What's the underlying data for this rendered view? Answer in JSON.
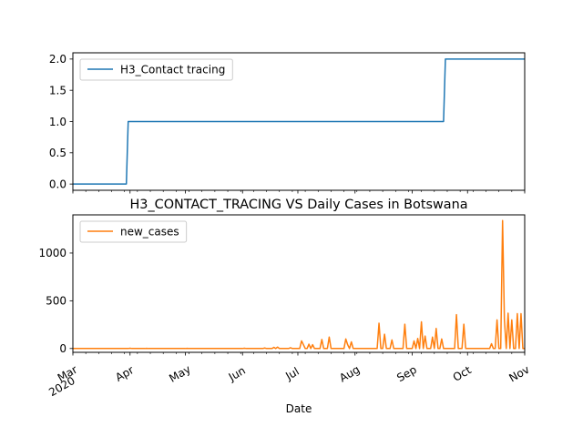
{
  "chart_data": [
    {
      "type": "line",
      "title": "",
      "xlabel": "",
      "ylabel": "",
      "ylim": [
        -0.1,
        2.1
      ],
      "yticks": [
        "0.0",
        "0.5",
        "1.0",
        "1.5",
        "2.0"
      ],
      "ytick_values": [
        0,
        0.5,
        1.0,
        1.5,
        2.0
      ],
      "legend_position": "upper-left",
      "series": [
        {
          "name": "H3_Contact tracing",
          "color": "#1f77b4",
          "points": [
            [
              "2020-03-01",
              0
            ],
            [
              "2020-03-30",
              0
            ],
            [
              "2020-03-31",
              1
            ],
            [
              "2020-09-18",
              1
            ],
            [
              "2020-09-19",
              2
            ],
            [
              "2020-11-01",
              2
            ]
          ]
        }
      ]
    },
    {
      "type": "line",
      "title": "H3_CONTACT_TRACING VS Daily Cases in Botswana",
      "xlabel": "Date",
      "ylabel": "",
      "ylim": [
        -40,
        1400
      ],
      "yticks": [
        "0",
        "500",
        "1000"
      ],
      "ytick_values": [
        0,
        500,
        1000
      ],
      "xticks": [
        {
          "date": "2020-03-01",
          "label": "Mar",
          "sub": "2020"
        },
        {
          "date": "2020-04-01",
          "label": "Apr",
          "sub": ""
        },
        {
          "date": "2020-05-01",
          "label": "May",
          "sub": ""
        },
        {
          "date": "2020-06-01",
          "label": "Jun",
          "sub": ""
        },
        {
          "date": "2020-07-01",
          "label": "Jul",
          "sub": ""
        },
        {
          "date": "2020-08-01",
          "label": "Aug",
          "sub": ""
        },
        {
          "date": "2020-09-01",
          "label": "Sep",
          "sub": ""
        },
        {
          "date": "2020-10-01",
          "label": "Oct",
          "sub": ""
        },
        {
          "date": "2020-11-01",
          "label": "Nov",
          "sub": ""
        }
      ],
      "legend_position": "upper-left",
      "series": [
        {
          "name": "new_cases",
          "color": "#ff7f0e",
          "points": [
            [
              "2020-03-01",
              0
            ],
            [
              "2020-03-31",
              0
            ],
            [
              "2020-04-01",
              3
            ],
            [
              "2020-04-02",
              0
            ],
            [
              "2020-04-09",
              0
            ],
            [
              "2020-04-10",
              2
            ],
            [
              "2020-04-11",
              0
            ],
            [
              "2020-05-01",
              0
            ],
            [
              "2020-05-02",
              2
            ],
            [
              "2020-05-03",
              0
            ],
            [
              "2020-06-01",
              0
            ],
            [
              "2020-06-02",
              3
            ],
            [
              "2020-06-03",
              0
            ],
            [
              "2020-06-12",
              0
            ],
            [
              "2020-06-13",
              5
            ],
            [
              "2020-06-14",
              0
            ],
            [
              "2020-06-17",
              0
            ],
            [
              "2020-06-18",
              12
            ],
            [
              "2020-06-19",
              0
            ],
            [
              "2020-06-20",
              15
            ],
            [
              "2020-06-21",
              0
            ],
            [
              "2020-06-26",
              0
            ],
            [
              "2020-06-27",
              8
            ],
            [
              "2020-06-28",
              0
            ],
            [
              "2020-07-02",
              0
            ],
            [
              "2020-07-03",
              80
            ],
            [
              "2020-07-04",
              40
            ],
            [
              "2020-07-05",
              0
            ],
            [
              "2020-07-06",
              0
            ],
            [
              "2020-07-07",
              45
            ],
            [
              "2020-07-08",
              0
            ],
            [
              "2020-07-09",
              40
            ],
            [
              "2020-07-10",
              0
            ],
            [
              "2020-07-13",
              0
            ],
            [
              "2020-07-14",
              95
            ],
            [
              "2020-07-15",
              0
            ],
            [
              "2020-07-17",
              0
            ],
            [
              "2020-07-18",
              120
            ],
            [
              "2020-07-19",
              0
            ],
            [
              "2020-07-26",
              0
            ],
            [
              "2020-07-27",
              100
            ],
            [
              "2020-07-28",
              40
            ],
            [
              "2020-07-29",
              0
            ],
            [
              "2020-07-30",
              70
            ],
            [
              "2020-07-31",
              0
            ],
            [
              "2020-08-13",
              0
            ],
            [
              "2020-08-14",
              265
            ],
            [
              "2020-08-15",
              0
            ],
            [
              "2020-08-16",
              0
            ],
            [
              "2020-08-17",
              150
            ],
            [
              "2020-08-18",
              0
            ],
            [
              "2020-08-20",
              0
            ],
            [
              "2020-08-21",
              90
            ],
            [
              "2020-08-22",
              0
            ],
            [
              "2020-08-27",
              0
            ],
            [
              "2020-08-28",
              255
            ],
            [
              "2020-08-29",
              0
            ],
            [
              "2020-09-01",
              0
            ],
            [
              "2020-09-02",
              80
            ],
            [
              "2020-09-03",
              0
            ],
            [
              "2020-09-04",
              105
            ],
            [
              "2020-09-05",
              0
            ],
            [
              "2020-09-06",
              280
            ],
            [
              "2020-09-07",
              0
            ],
            [
              "2020-09-08",
              130
            ],
            [
              "2020-09-09",
              0
            ],
            [
              "2020-09-11",
              0
            ],
            [
              "2020-09-12",
              120
            ],
            [
              "2020-09-13",
              0
            ],
            [
              "2020-09-14",
              210
            ],
            [
              "2020-09-15",
              0
            ],
            [
              "2020-09-16",
              0
            ],
            [
              "2020-09-17",
              100
            ],
            [
              "2020-09-18",
              0
            ],
            [
              "2020-09-24",
              0
            ],
            [
              "2020-09-25",
              355
            ],
            [
              "2020-09-26",
              0
            ],
            [
              "2020-09-28",
              0
            ],
            [
              "2020-09-29",
              255
            ],
            [
              "2020-09-30",
              0
            ],
            [
              "2020-10-13",
              0
            ],
            [
              "2020-10-14",
              50
            ],
            [
              "2020-10-15",
              0
            ],
            [
              "2020-10-16",
              0
            ],
            [
              "2020-10-17",
              300
            ],
            [
              "2020-10-18",
              0
            ],
            [
              "2020-10-19",
              0
            ],
            [
              "2020-10-20",
              1340
            ],
            [
              "2020-10-21",
              300
            ],
            [
              "2020-10-22",
              0
            ],
            [
              "2020-10-23",
              370
            ],
            [
              "2020-10-24",
              0
            ],
            [
              "2020-10-25",
              300
            ],
            [
              "2020-10-26",
              0
            ],
            [
              "2020-10-27",
              0
            ],
            [
              "2020-10-28",
              365
            ],
            [
              "2020-10-29",
              0
            ],
            [
              "2020-10-30",
              365
            ],
            [
              "2020-10-31",
              0
            ],
            [
              "2020-11-01",
              0
            ]
          ]
        }
      ]
    }
  ]
}
